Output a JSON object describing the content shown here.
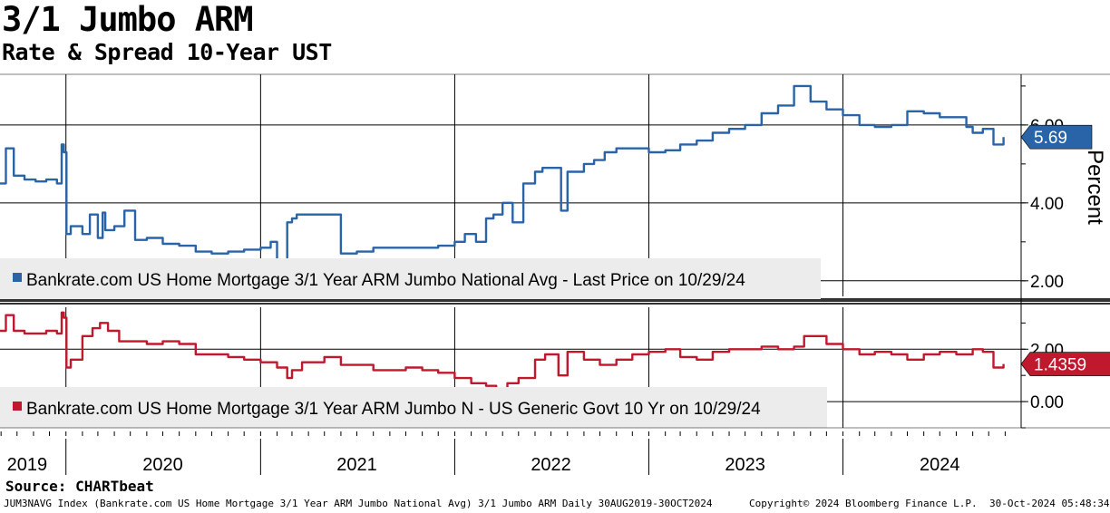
{
  "header": {
    "title": "3/1 Jumbo ARM",
    "subtitle": "Rate & Spread 10-Year UST"
  },
  "footer": {
    "source": "Source: CHARTbeat",
    "index_info": "JUM3NAVG Index (Bankrate.com US Home Mortgage 3/1 Year ARM Jumbo National Avg) 3/1 Jumbo ARM  Daily 30AUG2019-30OCT2024",
    "copyright": "Copyright© 2024 Bloomberg Finance L.P.",
    "timestamp": "30-Oct-2024 05:48:34"
  },
  "colors": {
    "rate": "#2a64a8",
    "spread": "#c0182d",
    "grid": "#000000",
    "legend_bg": "#ececec"
  },
  "chart_data": [
    {
      "type": "line",
      "panel": "top",
      "ylabel": "Percent",
      "ylim": [
        1.6,
        7.3
      ],
      "yticks": [
        2.0,
        4.0,
        6.0
      ],
      "ytick_labels": [
        "2.00",
        "4.00",
        "6.00"
      ],
      "legend": "Bankrate.com US Home Mortgage 3/1 Year ARM Jumbo National Avg - Last Price on 10/29/24",
      "last_value_label": "5.69",
      "last_value": 5.69,
      "series": [
        {
          "x": [
            "2019-08-30",
            "2019-09-10",
            "2019-09-25",
            "2019-10-15",
            "2019-11-05",
            "2019-11-25",
            "2019-12-15",
            "2019-12-24",
            "2019-12-28",
            "2020-01-02",
            "2020-01-10",
            "2020-02-01",
            "2020-02-15",
            "2020-03-01",
            "2020-03-10",
            "2020-03-15",
            "2020-04-01",
            "2020-04-20",
            "2020-05-10",
            "2020-06-01",
            "2020-07-01",
            "2020-08-01",
            "2020-09-01",
            "2020-10-01",
            "2020-11-01",
            "2020-12-01",
            "2021-01-01",
            "2021-01-20",
            "2021-02-01",
            "2021-02-20",
            "2021-03-01",
            "2021-03-10",
            "2021-04-01",
            "2021-05-01",
            "2021-06-01",
            "2021-07-01",
            "2021-08-01",
            "2021-09-01",
            "2021-10-01",
            "2021-11-01",
            "2021-12-01",
            "2022-01-01",
            "2022-01-20",
            "2022-02-10",
            "2022-03-01",
            "2022-03-15",
            "2022-04-01",
            "2022-04-20",
            "2022-05-10",
            "2022-06-01",
            "2022-06-15",
            "2022-07-01",
            "2022-07-20",
            "2022-08-01",
            "2022-09-01",
            "2022-09-20",
            "2022-10-10",
            "2022-11-01",
            "2022-12-01",
            "2023-01-01",
            "2023-02-01",
            "2023-03-01",
            "2023-04-01",
            "2023-05-01",
            "2023-06-01",
            "2023-07-01",
            "2023-08-01",
            "2023-09-01",
            "2023-10-01",
            "2023-10-20",
            "2023-11-01",
            "2023-12-01",
            "2024-01-01",
            "2024-02-01",
            "2024-03-01",
            "2024-04-01",
            "2024-05-01",
            "2024-06-01",
            "2024-07-01",
            "2024-08-01",
            "2024-08-20",
            "2024-09-01",
            "2024-09-20",
            "2024-10-10",
            "2024-10-29"
          ],
          "y": [
            4.5,
            5.4,
            4.7,
            4.6,
            4.55,
            4.6,
            4.5,
            5.5,
            5.3,
            3.2,
            3.4,
            3.2,
            3.7,
            3.1,
            3.75,
            3.3,
            3.4,
            3.8,
            3.05,
            3.1,
            2.95,
            2.9,
            2.75,
            2.7,
            2.75,
            2.8,
            2.85,
            3.0,
            2.55,
            3.5,
            3.6,
            3.7,
            3.7,
            3.7,
            2.7,
            2.75,
            2.85,
            2.85,
            2.85,
            2.85,
            2.9,
            3.0,
            3.2,
            3.0,
            3.6,
            3.7,
            4.0,
            3.5,
            4.5,
            4.8,
            4.9,
            4.9,
            3.8,
            4.8,
            5.0,
            5.1,
            5.3,
            5.4,
            5.4,
            5.3,
            5.35,
            5.5,
            5.6,
            5.8,
            5.9,
            6.0,
            6.3,
            6.5,
            7.0,
            7.0,
            6.6,
            6.4,
            6.25,
            6.0,
            5.95,
            6.0,
            6.35,
            6.3,
            6.2,
            6.2,
            5.95,
            5.8,
            5.9,
            5.5,
            5.69
          ]
        }
      ]
    },
    {
      "type": "line",
      "panel": "bottom",
      "ylim": [
        -1.0,
        3.6
      ],
      "yticks": [
        0.0,
        2.0
      ],
      "ytick_labels": [
        "0.00",
        "2.00"
      ],
      "legend": "Bankrate.com US Home Mortgage 3/1 Year ARM Jumbo N - US Generic Govt 10 Yr on 10/29/24",
      "last_value_label": "1.4359",
      "last_value": 1.4359,
      "series": [
        {
          "x": [
            "2019-08-30",
            "2019-09-10",
            "2019-09-25",
            "2019-10-15",
            "2019-11-05",
            "2019-11-25",
            "2019-12-15",
            "2019-12-24",
            "2019-12-28",
            "2020-01-02",
            "2020-01-10",
            "2020-02-01",
            "2020-02-20",
            "2020-03-05",
            "2020-03-20",
            "2020-04-10",
            "2020-05-01",
            "2020-06-01",
            "2020-07-01",
            "2020-08-01",
            "2020-09-01",
            "2020-10-01",
            "2020-11-01",
            "2020-12-01",
            "2021-01-01",
            "2021-02-01",
            "2021-02-20",
            "2021-03-01",
            "2021-03-20",
            "2021-04-01",
            "2021-05-01",
            "2021-06-01",
            "2021-07-01",
            "2021-08-01",
            "2021-09-01",
            "2021-10-01",
            "2021-11-01",
            "2021-12-01",
            "2022-01-01",
            "2022-02-01",
            "2022-03-01",
            "2022-03-20",
            "2022-04-10",
            "2022-05-01",
            "2022-06-01",
            "2022-06-20",
            "2022-07-15",
            "2022-08-01",
            "2022-09-01",
            "2022-10-01",
            "2022-11-01",
            "2022-12-01",
            "2023-01-01",
            "2023-02-01",
            "2023-03-01",
            "2023-04-01",
            "2023-05-01",
            "2023-06-01",
            "2023-07-01",
            "2023-08-01",
            "2023-09-01",
            "2023-10-01",
            "2023-10-20",
            "2023-11-01",
            "2023-12-01",
            "2024-01-01",
            "2024-02-01",
            "2024-03-01",
            "2024-04-01",
            "2024-05-01",
            "2024-06-01",
            "2024-07-01",
            "2024-08-01",
            "2024-09-01",
            "2024-09-20",
            "2024-10-10",
            "2024-10-29"
          ],
          "y": [
            2.7,
            3.3,
            2.7,
            2.6,
            2.6,
            2.7,
            2.6,
            3.4,
            3.2,
            1.3,
            1.6,
            2.5,
            2.8,
            3.0,
            2.7,
            2.3,
            2.3,
            2.2,
            2.3,
            2.2,
            1.8,
            1.8,
            1.7,
            1.6,
            1.5,
            1.3,
            0.9,
            1.2,
            1.5,
            1.5,
            1.7,
            1.4,
            1.4,
            1.2,
            1.2,
            1.3,
            1.2,
            1.1,
            0.9,
            0.7,
            0.6,
            0.3,
            0.7,
            0.9,
            1.6,
            1.8,
            1.0,
            1.9,
            1.6,
            1.4,
            1.6,
            1.8,
            1.9,
            2.0,
            1.7,
            1.6,
            1.9,
            2.0,
            2.0,
            2.1,
            2.0,
            2.1,
            2.5,
            2.5,
            2.2,
            2.0,
            1.8,
            1.9,
            1.8,
            1.6,
            1.8,
            1.9,
            1.8,
            2.0,
            1.9,
            1.3,
            1.4359
          ]
        }
      ]
    }
  ],
  "xaxis": {
    "start": "2019-08-30",
    "end": "2024-12-01",
    "year_labels": [
      {
        "label": "2019",
        "center": "2019-10-20"
      },
      {
        "label": "2020",
        "center": "2020-07-01"
      },
      {
        "label": "2021",
        "center": "2021-07-01"
      },
      {
        "label": "2022",
        "center": "2022-07-01"
      },
      {
        "label": "2023",
        "center": "2023-07-01"
      },
      {
        "label": "2024",
        "center": "2024-07-01"
      }
    ],
    "year_dividers": [
      "2020-01-01",
      "2021-01-01",
      "2022-01-01",
      "2023-01-01",
      "2024-01-01"
    ]
  }
}
